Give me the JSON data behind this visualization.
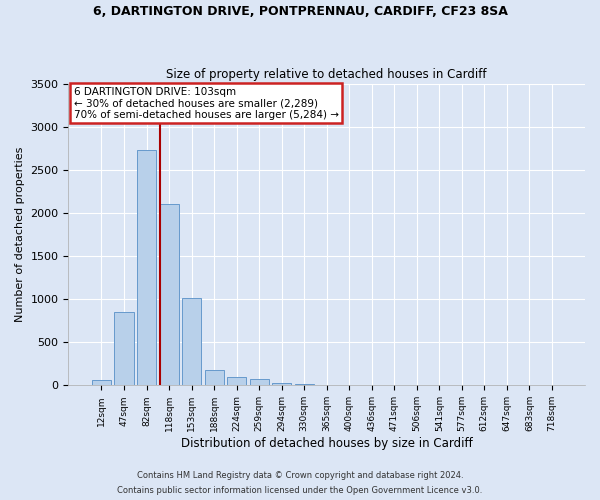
{
  "title1": "6, DARTINGTON DRIVE, PONTPRENNAU, CARDIFF, CF23 8SA",
  "title2": "Size of property relative to detached houses in Cardiff",
  "xlabel": "Distribution of detached houses by size in Cardiff",
  "ylabel": "Number of detached properties",
  "bar_labels": [
    "12sqm",
    "47sqm",
    "82sqm",
    "118sqm",
    "153sqm",
    "188sqm",
    "224sqm",
    "259sqm",
    "294sqm",
    "330sqm",
    "365sqm",
    "400sqm",
    "436sqm",
    "471sqm",
    "506sqm",
    "541sqm",
    "577sqm",
    "612sqm",
    "647sqm",
    "683sqm",
    "718sqm"
  ],
  "bar_values": [
    60,
    850,
    2730,
    2100,
    1010,
    180,
    100,
    70,
    30,
    20,
    0,
    0,
    0,
    0,
    0,
    0,
    0,
    0,
    0,
    0,
    0
  ],
  "bar_color": "#b8d0ea",
  "bar_edge_color": "#6699cc",
  "vline_color": "#aa0000",
  "annotation_box_color": "#ffffff",
  "annotation_box_edge": "#cc2222",
  "ylim": [
    0,
    3500
  ],
  "yticks": [
    0,
    500,
    1000,
    1500,
    2000,
    2500,
    3000,
    3500
  ],
  "bg_color": "#dce6f5",
  "fig_bg_color": "#dce6f5",
  "grid_color": "#ffffff",
  "property_label": "6 DARTINGTON DRIVE: 103sqm",
  "annotation_line1": "← 30% of detached houses are smaller (2,289)",
  "annotation_line2": "70% of semi-detached houses are larger (5,284) →",
  "footer1": "Contains HM Land Registry data © Crown copyright and database right 2024.",
  "footer2": "Contains public sector information licensed under the Open Government Licence v3.0."
}
